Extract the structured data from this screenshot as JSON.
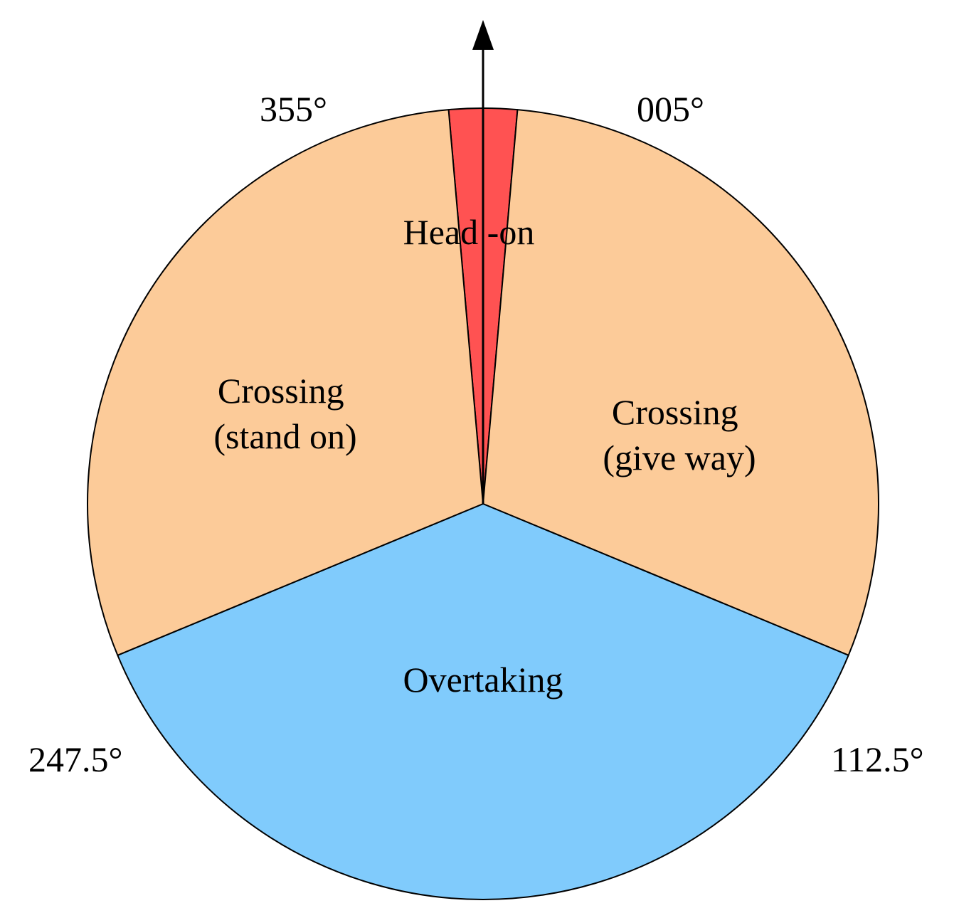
{
  "sectors": [
    {
      "id": "head-on",
      "label_lines": [
        "Head -on"
      ],
      "from_deg": 355,
      "to_deg": 5,
      "color": "#FF5252"
    },
    {
      "id": "crossing-give-way",
      "label_lines": [
        "Crossing",
        "(give way)"
      ],
      "from_deg": 5,
      "to_deg": 112.5,
      "color": "#FCCB99"
    },
    {
      "id": "overtaking",
      "label_lines": [
        "Overtaking"
      ],
      "from_deg": 112.5,
      "to_deg": 247.5,
      "color": "#80CBFC"
    },
    {
      "id": "crossing-stand-on",
      "label_lines": [
        "Crossing",
        "(stand on)"
      ],
      "from_deg": 247.5,
      "to_deg": 355,
      "color": "#FCCB99"
    }
  ],
  "bearing_labels": [
    {
      "id": "005",
      "text": "005°"
    },
    {
      "id": "112-5",
      "text": "112.5°"
    },
    {
      "id": "247-5",
      "text": "247.5°"
    },
    {
      "id": "355",
      "text": "355°"
    }
  ],
  "heading_arrow_icon": "arrow-up-icon"
}
